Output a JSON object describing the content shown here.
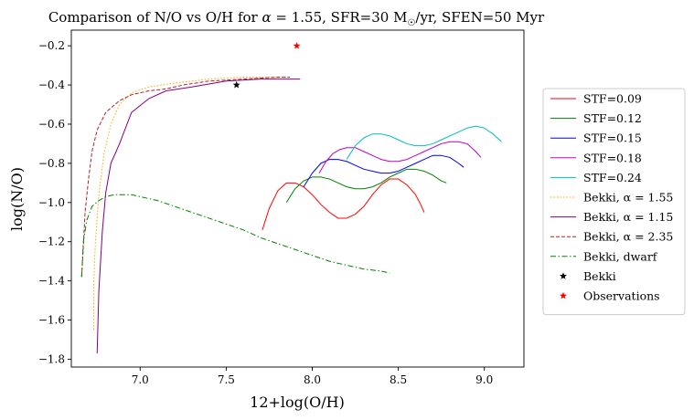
{
  "chart_data": {
    "type": "line",
    "title": "Comparison of N/O vs O/H for α = 1.55, SFR=30 M☉/yr, SFEN=50 Myr",
    "title_parts": {
      "a": "Comparison of N/O vs O/H for ",
      "alpha": "α",
      "b": " = 1.55, SFR=30 M",
      "sun": "☉",
      "c": "/yr, SFEN=50 Myr"
    },
    "xlabel": "12+log(O/H)",
    "ylabel": "log(N/O)",
    "xlim": [
      6.6,
      10.0
    ],
    "ylim": [
      -1.85,
      -0.12
    ],
    "xticks": [
      7.0,
      7.5,
      8.0,
      8.5,
      9.0
    ],
    "xtick_labels": [
      "7.0",
      "7.5",
      "8.0",
      "8.5",
      "9.0"
    ],
    "yticks": [
      -1.8,
      -1.6,
      -1.4,
      -1.2,
      -1.0,
      -0.8,
      -0.6,
      -0.4,
      -0.2
    ],
    "ytick_labels": [
      "−1.8",
      "−1.6",
      "−1.4",
      "−1.2",
      "−1.0",
      "−0.8",
      "−0.6",
      "−0.4",
      "−0.2"
    ],
    "grid": false,
    "legend_position": "right, outside plot",
    "series": [
      {
        "name": "STF=0.09",
        "color": "#ff0000",
        "style": "solid",
        "x": [
          7.71,
          7.75,
          7.8,
          7.85,
          7.9,
          7.95,
          8.0,
          8.05,
          8.1,
          8.15,
          8.2,
          8.25,
          8.3,
          8.35,
          8.4,
          8.45,
          8.5,
          8.55,
          8.6,
          8.63,
          8.65
        ],
        "y": [
          -1.14,
          -1.03,
          -0.94,
          -0.9,
          -0.9,
          -0.92,
          -0.96,
          -1.01,
          -1.05,
          -1.08,
          -1.08,
          -1.06,
          -1.02,
          -0.96,
          -0.91,
          -0.88,
          -0.88,
          -0.91,
          -0.96,
          -1.01,
          -1.05
        ]
      },
      {
        "name": "STF=0.12",
        "color": "#008000",
        "style": "solid",
        "x": [
          7.85,
          7.9,
          7.95,
          8.0,
          8.05,
          8.1,
          8.15,
          8.2,
          8.25,
          8.3,
          8.35,
          8.4,
          8.45,
          8.5,
          8.55,
          8.6,
          8.65,
          8.7,
          8.75,
          8.78
        ],
        "y": [
          -1.0,
          -0.93,
          -0.89,
          -0.87,
          -0.87,
          -0.88,
          -0.9,
          -0.92,
          -0.93,
          -0.93,
          -0.92,
          -0.9,
          -0.87,
          -0.85,
          -0.83,
          -0.83,
          -0.84,
          -0.86,
          -0.89,
          -0.9
        ]
      },
      {
        "name": "STF=0.15",
        "color": "#0000ff",
        "style": "solid",
        "x": [
          7.95,
          8.0,
          8.05,
          8.1,
          8.15,
          8.2,
          8.25,
          8.3,
          8.35,
          8.4,
          8.45,
          8.5,
          8.55,
          8.6,
          8.65,
          8.7,
          8.75,
          8.8,
          8.85,
          8.88
        ],
        "y": [
          -0.92,
          -0.85,
          -0.8,
          -0.78,
          -0.78,
          -0.79,
          -0.81,
          -0.83,
          -0.84,
          -0.85,
          -0.85,
          -0.84,
          -0.82,
          -0.8,
          -0.78,
          -0.76,
          -0.76,
          -0.77,
          -0.8,
          -0.82
        ]
      },
      {
        "name": "STF=0.18",
        "color": "#bf00bf",
        "style": "solid",
        "x": [
          8.04,
          8.08,
          8.12,
          8.16,
          8.2,
          8.25,
          8.3,
          8.35,
          8.4,
          8.45,
          8.5,
          8.55,
          8.6,
          8.65,
          8.7,
          8.75,
          8.8,
          8.85,
          8.9,
          8.95,
          8.98
        ],
        "y": [
          -0.85,
          -0.79,
          -0.75,
          -0.73,
          -0.72,
          -0.72,
          -0.74,
          -0.76,
          -0.78,
          -0.79,
          -0.79,
          -0.78,
          -0.76,
          -0.74,
          -0.72,
          -0.7,
          -0.69,
          -0.69,
          -0.7,
          -0.74,
          -0.77
        ]
      },
      {
        "name": "STF=0.24",
        "color": "#00bfbf",
        "style": "solid",
        "x": [
          8.2,
          8.25,
          8.3,
          8.35,
          8.4,
          8.45,
          8.5,
          8.55,
          8.6,
          8.65,
          8.7,
          8.75,
          8.8,
          8.85,
          8.9,
          8.95,
          9.0,
          9.05,
          9.1
        ],
        "y": [
          -0.78,
          -0.71,
          -0.67,
          -0.65,
          -0.65,
          -0.66,
          -0.68,
          -0.7,
          -0.71,
          -0.71,
          -0.7,
          -0.68,
          -0.66,
          -0.64,
          -0.62,
          -0.61,
          -0.62,
          -0.65,
          -0.69
        ]
      },
      {
        "name": "Bekki, α = 1.55",
        "color": "#ffa500",
        "style": "dotted",
        "x": [
          6.73,
          6.73,
          6.74,
          6.76,
          6.79,
          6.83,
          6.88,
          6.95,
          7.05,
          7.2,
          7.4,
          7.6,
          7.8,
          7.86
        ],
        "y": [
          -1.65,
          -1.42,
          -1.2,
          -0.96,
          -0.75,
          -0.6,
          -0.5,
          -0.44,
          -0.41,
          -0.39,
          -0.37,
          -0.36,
          -0.36,
          -0.36
        ]
      },
      {
        "name": "Bekki, α = 1.15",
        "color": "#800080",
        "style": "solid",
        "x": [
          6.75,
          6.76,
          6.78,
          6.8,
          6.83,
          6.88,
          6.95,
          7.05,
          7.15,
          7.3,
          7.5,
          7.7,
          7.85,
          7.93
        ],
        "y": [
          -1.77,
          -1.45,
          -1.15,
          -0.95,
          -0.8,
          -0.7,
          -0.54,
          -0.47,
          -0.43,
          -0.41,
          -0.38,
          -0.37,
          -0.37,
          -0.37
        ]
      },
      {
        "name": "Bekki, α = 2.35",
        "color": "#b22222",
        "style": "dashed",
        "x": [
          6.66,
          6.67,
          6.68,
          6.7,
          6.72,
          6.75,
          6.8,
          6.88,
          6.95,
          7.05,
          7.15,
          7.25,
          7.4,
          7.6,
          7.8,
          7.87
        ],
        "y": [
          -1.38,
          -1.22,
          -1.05,
          -0.88,
          -0.74,
          -0.63,
          -0.54,
          -0.48,
          -0.45,
          -0.43,
          -0.42,
          -0.4,
          -0.38,
          -0.37,
          -0.36,
          -0.36
        ]
      },
      {
        "name": "Bekki, dwarf",
        "color": "#008000",
        "style": "dashdot",
        "x": [
          6.66,
          6.67,
          6.69,
          6.72,
          6.76,
          6.8,
          6.85,
          6.9,
          6.95,
          7.0,
          7.1,
          7.2,
          7.3,
          7.4,
          7.5,
          7.6,
          7.7,
          7.8,
          7.9,
          8.0,
          8.1,
          8.2,
          8.3,
          8.4,
          8.45
        ],
        "y": [
          -1.38,
          -1.2,
          -1.09,
          -1.02,
          -0.99,
          -0.97,
          -0.96,
          -0.96,
          -0.96,
          -0.97,
          -0.99,
          -1.02,
          -1.05,
          -1.08,
          -1.11,
          -1.14,
          -1.18,
          -1.21,
          -1.24,
          -1.27,
          -1.3,
          -1.32,
          -1.34,
          -1.35,
          -1.36
        ]
      }
    ],
    "points": [
      {
        "name": "Bekki",
        "color": "#000000",
        "marker": "star",
        "x": 7.56,
        "y": -0.4
      },
      {
        "name": "Observations",
        "color": "#ff0000",
        "marker": "star",
        "x": 7.91,
        "y": -0.2
      }
    ],
    "legend": [
      {
        "label": "STF=0.09",
        "kind": "line",
        "color": "#ff0000",
        "style": "solid"
      },
      {
        "label": "STF=0.12",
        "kind": "line",
        "color": "#008000",
        "style": "solid"
      },
      {
        "label": "STF=0.15",
        "kind": "line",
        "color": "#0000ff",
        "style": "solid"
      },
      {
        "label": "STF=0.18",
        "kind": "line",
        "color": "#bf00bf",
        "style": "solid"
      },
      {
        "label": "STF=0.24",
        "kind": "line",
        "color": "#00bfbf",
        "style": "solid"
      },
      {
        "label": "Bekki, α = 1.55",
        "kind": "line",
        "color": "#ffa500",
        "style": "dotted"
      },
      {
        "label": "Bekki, α = 1.15",
        "kind": "line",
        "color": "#800080",
        "style": "solid"
      },
      {
        "label": "Bekki, α = 2.35",
        "kind": "line",
        "color": "#b22222",
        "style": "dashed"
      },
      {
        "label": "Bekki, dwarf",
        "kind": "line",
        "color": "#008000",
        "style": "dashdot"
      },
      {
        "label": "Bekki",
        "kind": "marker",
        "color": "#000000",
        "marker": "star"
      },
      {
        "label": "Observations",
        "kind": "marker",
        "color": "#ff0000",
        "marker": "star"
      }
    ]
  }
}
